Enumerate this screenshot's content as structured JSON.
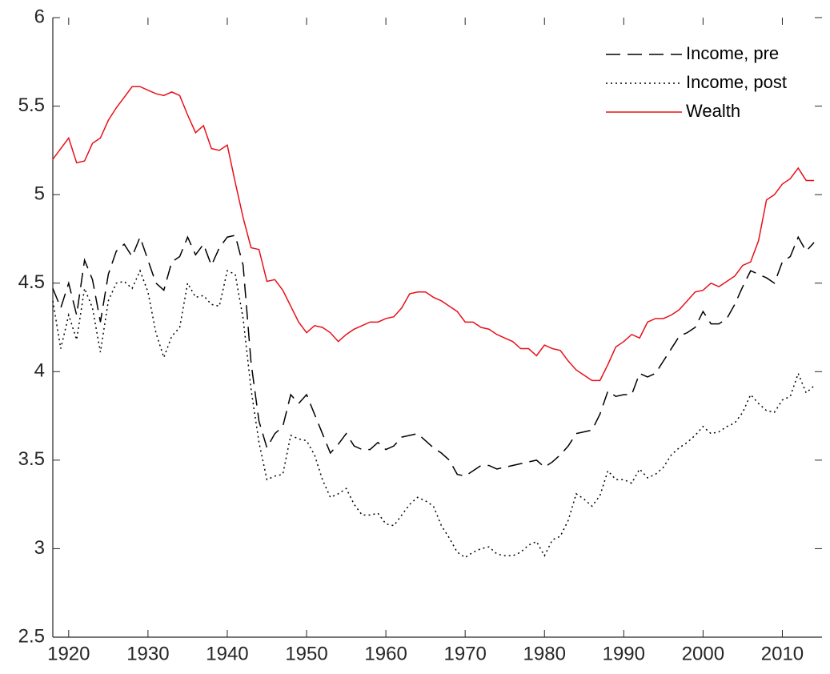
{
  "chart_data": {
    "type": "line",
    "x": [
      1918,
      1919,
      1920,
      1921,
      1922,
      1923,
      1924,
      1925,
      1926,
      1927,
      1928,
      1929,
      1930,
      1931,
      1932,
      1933,
      1934,
      1935,
      1936,
      1937,
      1938,
      1939,
      1940,
      1941,
      1942,
      1943,
      1944,
      1945,
      1946,
      1947,
      1948,
      1949,
      1950,
      1951,
      1952,
      1953,
      1954,
      1955,
      1956,
      1957,
      1958,
      1959,
      1960,
      1961,
      1962,
      1963,
      1964,
      1965,
      1966,
      1967,
      1968,
      1969,
      1970,
      1971,
      1972,
      1973,
      1974,
      1975,
      1976,
      1977,
      1978,
      1979,
      1980,
      1981,
      1982,
      1983,
      1984,
      1985,
      1986,
      1987,
      1988,
      1989,
      1990,
      1991,
      1992,
      1993,
      1994,
      1995,
      1996,
      1997,
      1998,
      1999,
      2000,
      2001,
      2002,
      2003,
      2004,
      2005,
      2006,
      2007,
      2008,
      2009,
      2010,
      2011,
      2012,
      2013,
      2014
    ],
    "series": [
      {
        "name": "Income, pre",
        "color": "#000000",
        "dash": "dashed",
        "values": [
          4.47,
          4.36,
          4.5,
          4.32,
          4.63,
          4.52,
          4.28,
          4.55,
          4.68,
          4.72,
          4.65,
          4.76,
          4.63,
          4.5,
          4.46,
          4.62,
          4.65,
          4.76,
          4.66,
          4.72,
          4.6,
          4.7,
          4.76,
          4.77,
          4.6,
          4.05,
          3.72,
          3.57,
          3.65,
          3.69,
          3.87,
          3.82,
          3.87,
          3.76,
          3.65,
          3.54,
          3.59,
          3.65,
          3.58,
          3.56,
          3.56,
          3.6,
          3.56,
          3.58,
          3.63,
          3.64,
          3.65,
          3.61,
          3.57,
          3.54,
          3.5,
          3.42,
          3.41,
          3.44,
          3.47,
          3.47,
          3.45,
          3.46,
          3.47,
          3.48,
          3.49,
          3.5,
          3.46,
          3.49,
          3.53,
          3.58,
          3.65,
          3.66,
          3.67,
          3.76,
          3.89,
          3.86,
          3.87,
          3.87,
          3.99,
          3.97,
          3.99,
          4.06,
          4.13,
          4.2,
          4.22,
          4.25,
          4.34,
          4.27,
          4.27,
          4.3,
          4.38,
          4.48,
          4.57,
          4.55,
          4.53,
          4.5,
          4.62,
          4.65,
          4.76,
          4.68,
          4.73
        ]
      },
      {
        "name": "Income, post",
        "color": "#000000",
        "dash": "dotted",
        "values": [
          4.4,
          4.13,
          4.32,
          4.18,
          4.47,
          4.36,
          4.11,
          4.4,
          4.5,
          4.51,
          4.47,
          4.57,
          4.45,
          4.22,
          4.08,
          4.2,
          4.25,
          4.5,
          4.42,
          4.43,
          4.38,
          4.37,
          4.57,
          4.55,
          4.3,
          3.9,
          3.6,
          3.39,
          3.41,
          3.42,
          3.64,
          3.62,
          3.61,
          3.53,
          3.39,
          3.29,
          3.31,
          3.34,
          3.25,
          3.19,
          3.19,
          3.2,
          3.14,
          3.13,
          3.19,
          3.25,
          3.29,
          3.27,
          3.24,
          3.13,
          3.06,
          2.98,
          2.95,
          2.98,
          3.0,
          3.01,
          2.97,
          2.96,
          2.96,
          2.98,
          3.02,
          3.04,
          2.96,
          3.05,
          3.07,
          3.16,
          3.31,
          3.28,
          3.24,
          3.3,
          3.44,
          3.39,
          3.39,
          3.37,
          3.45,
          3.4,
          3.42,
          3.46,
          3.53,
          3.57,
          3.6,
          3.64,
          3.69,
          3.65,
          3.66,
          3.69,
          3.71,
          3.77,
          3.87,
          3.82,
          3.78,
          3.77,
          3.84,
          3.86,
          3.99,
          3.88,
          3.92
        ]
      },
      {
        "name": "Wealth",
        "color": "#e8101a",
        "dash": "solid",
        "values": [
          5.2,
          5.26,
          5.32,
          5.18,
          5.19,
          5.29,
          5.32,
          5.42,
          5.49,
          5.55,
          5.61,
          5.61,
          5.59,
          5.57,
          5.56,
          5.58,
          5.56,
          5.45,
          5.35,
          5.39,
          5.26,
          5.25,
          5.28,
          5.07,
          4.87,
          4.7,
          4.69,
          4.51,
          4.52,
          4.46,
          4.37,
          4.28,
          4.22,
          4.26,
          4.25,
          4.22,
          4.17,
          4.21,
          4.24,
          4.26,
          4.28,
          4.28,
          4.3,
          4.31,
          4.36,
          4.44,
          4.45,
          4.45,
          4.42,
          4.4,
          4.37,
          4.34,
          4.28,
          4.28,
          4.25,
          4.24,
          4.21,
          4.19,
          4.17,
          4.13,
          4.13,
          4.09,
          4.15,
          4.13,
          4.12,
          4.06,
          4.01,
          3.98,
          3.95,
          3.95,
          4.04,
          4.14,
          4.17,
          4.21,
          4.19,
          4.28,
          4.3,
          4.3,
          4.32,
          4.35,
          4.4,
          4.45,
          4.46,
          4.5,
          4.48,
          4.51,
          4.54,
          4.6,
          4.62,
          4.74,
          4.97,
          5.0,
          5.06,
          5.09,
          5.15,
          5.08,
          5.08
        ]
      }
    ],
    "xlim": [
      1918,
      2015
    ],
    "xticks": [
      1920,
      1930,
      1940,
      1950,
      1960,
      1970,
      1980,
      1990,
      2000,
      2010
    ],
    "ylim": [
      2.5,
      6
    ],
    "yticks": [
      2.5,
      3,
      3.5,
      4,
      4.5,
      5,
      5.5,
      6
    ],
    "grid": false,
    "legend": "upper right"
  }
}
